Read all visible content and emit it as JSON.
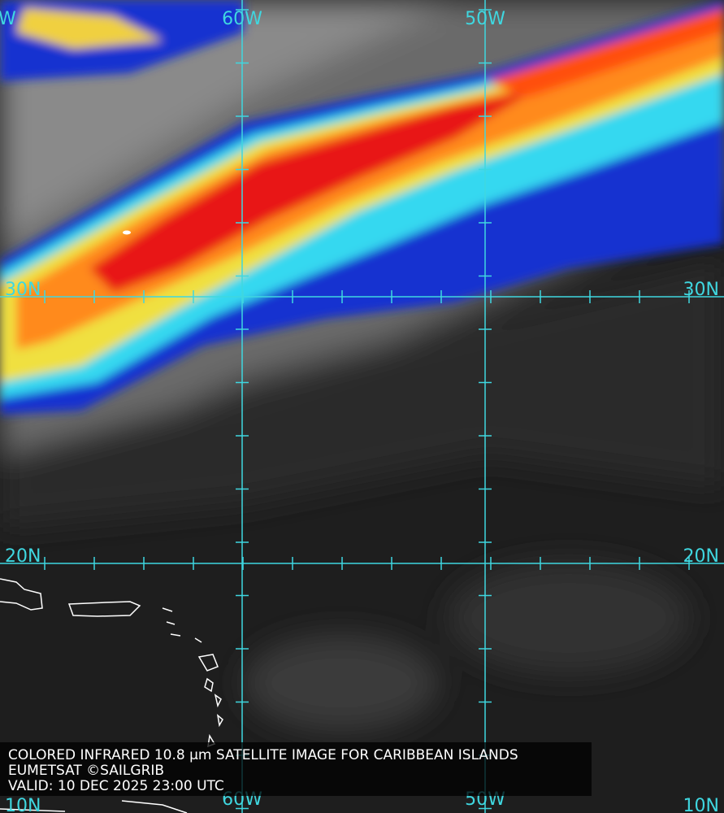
{
  "map": {
    "grid_labels": {
      "top": [
        "W",
        "60W",
        "50W"
      ],
      "left": [
        "30N",
        "20N",
        "10N"
      ],
      "right": [
        "30N",
        "20N",
        "10N"
      ],
      "bottom": [
        "60W",
        "50W"
      ]
    },
    "caption": {
      "line1": "COLORED INFRARED 10.8 µm SATELLITE IMAGE FOR CARIBBEAN ISLANDS",
      "line2": "EUMETSAT ©SAILGRIB",
      "line3": "VALID:  10 DEC 2025 23:00 UTC"
    }
  }
}
